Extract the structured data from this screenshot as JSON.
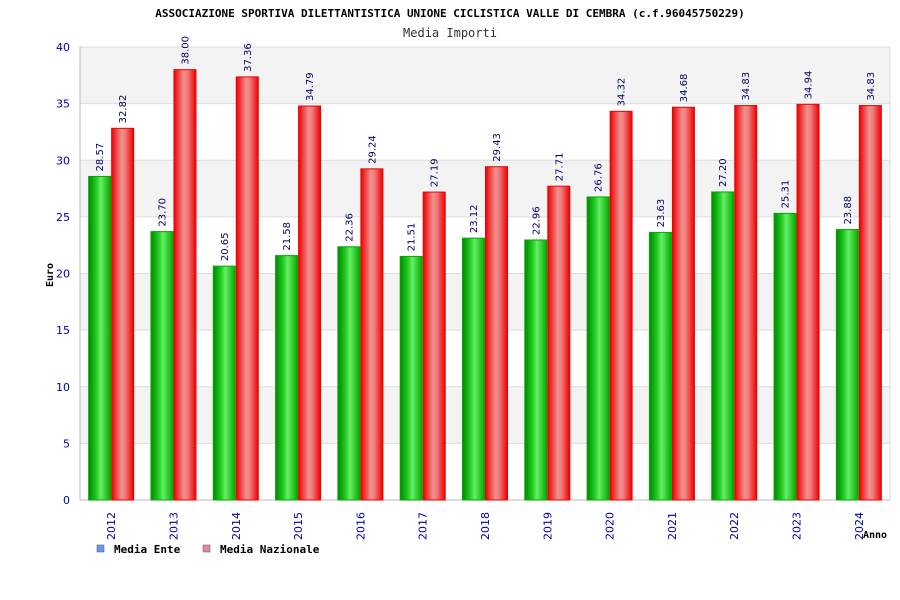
{
  "chart_data": {
    "type": "bar",
    "title": "ASSOCIAZIONE SPORTIVA DILETTANTISTICA UNIONE CICLISTICA VALLE DI CEMBRA (c.f.96045750229)",
    "subtitle": "Media Importi",
    "xlabel": "Anno",
    "ylabel": "Euro",
    "ylim": [
      0,
      40
    ],
    "yticks": [
      "0",
      "5",
      "10",
      "15",
      "20",
      "25",
      "30",
      "35",
      "40"
    ],
    "grid": true,
    "legend_position": "bottom-left",
    "categories": [
      "2012",
      "2013",
      "2014",
      "2015",
      "2016",
      "2017",
      "2018",
      "2019",
      "2020",
      "2021",
      "2022",
      "2023",
      "2024"
    ],
    "series": [
      {
        "name": "Media Ente",
        "values": [
          28.57,
          23.7,
          20.65,
          21.58,
          22.36,
          21.51,
          23.12,
          22.96,
          26.76,
          23.63,
          27.2,
          25.31,
          23.88
        ],
        "labels": [
          "28.57",
          "23.70",
          "20.65",
          "21.58",
          "22.36",
          "21.51",
          "23.12",
          "22.96",
          "26.76",
          "23.63",
          "27.20",
          "25.31",
          "23.88"
        ],
        "color": "#00aa00",
        "legend_color": "#6699ee"
      },
      {
        "name": "Media Nazionale",
        "values": [
          32.82,
          38.0,
          37.36,
          34.79,
          29.24,
          27.19,
          29.43,
          27.71,
          34.32,
          34.68,
          34.83,
          34.94,
          34.83
        ],
        "labels": [
          "32.82",
          "38.00",
          "37.36",
          "34.79",
          "29.24",
          "27.19",
          "29.43",
          "27.71",
          "34.32",
          "34.68",
          "34.83",
          "34.94",
          "34.83"
        ],
        "color": "#ee1111",
        "legend_color": "#dd88aa"
      }
    ]
  }
}
